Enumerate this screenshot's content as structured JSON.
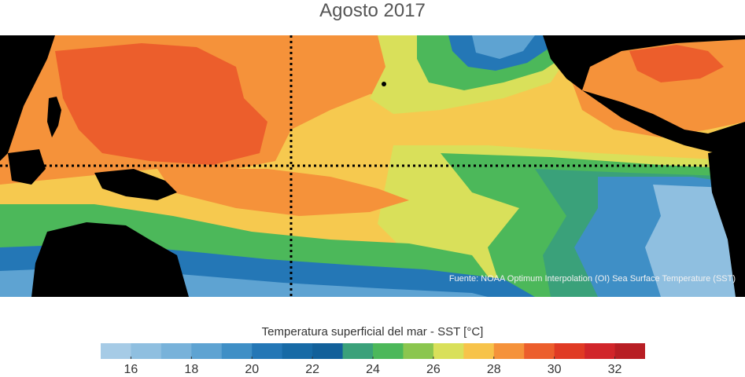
{
  "title": "Agosto 2017",
  "source_note": "Fuente: NOAA Optimum Interpolation (OI) Sea Surface Temperature (SST)",
  "colorbar": {
    "label": "Temperatura superficial del mar - SST  [°C]",
    "min": 15,
    "max": 33,
    "ticks": [
      16,
      18,
      20,
      22,
      24,
      26,
      28,
      30,
      32
    ],
    "tick_labels": [
      "16",
      "18",
      "20",
      "22",
      "24",
      "26",
      "28",
      "30",
      "32"
    ],
    "colors": [
      "#a6cbe6",
      "#8fbfe0",
      "#78b2da",
      "#5ea3d2",
      "#3f8fc6",
      "#2477b6",
      "#176aa6",
      "#12609a",
      "#3aa17a",
      "#4cb85a",
      "#8bc64f",
      "#d9e05a",
      "#f7c34a",
      "#f5923a",
      "#ec5e2c",
      "#e03a24",
      "#d1252a",
      "#b81e24"
    ]
  },
  "map": {
    "land_color": "#000000",
    "lines": [
      "equator",
      "date-line-180"
    ]
  }
}
